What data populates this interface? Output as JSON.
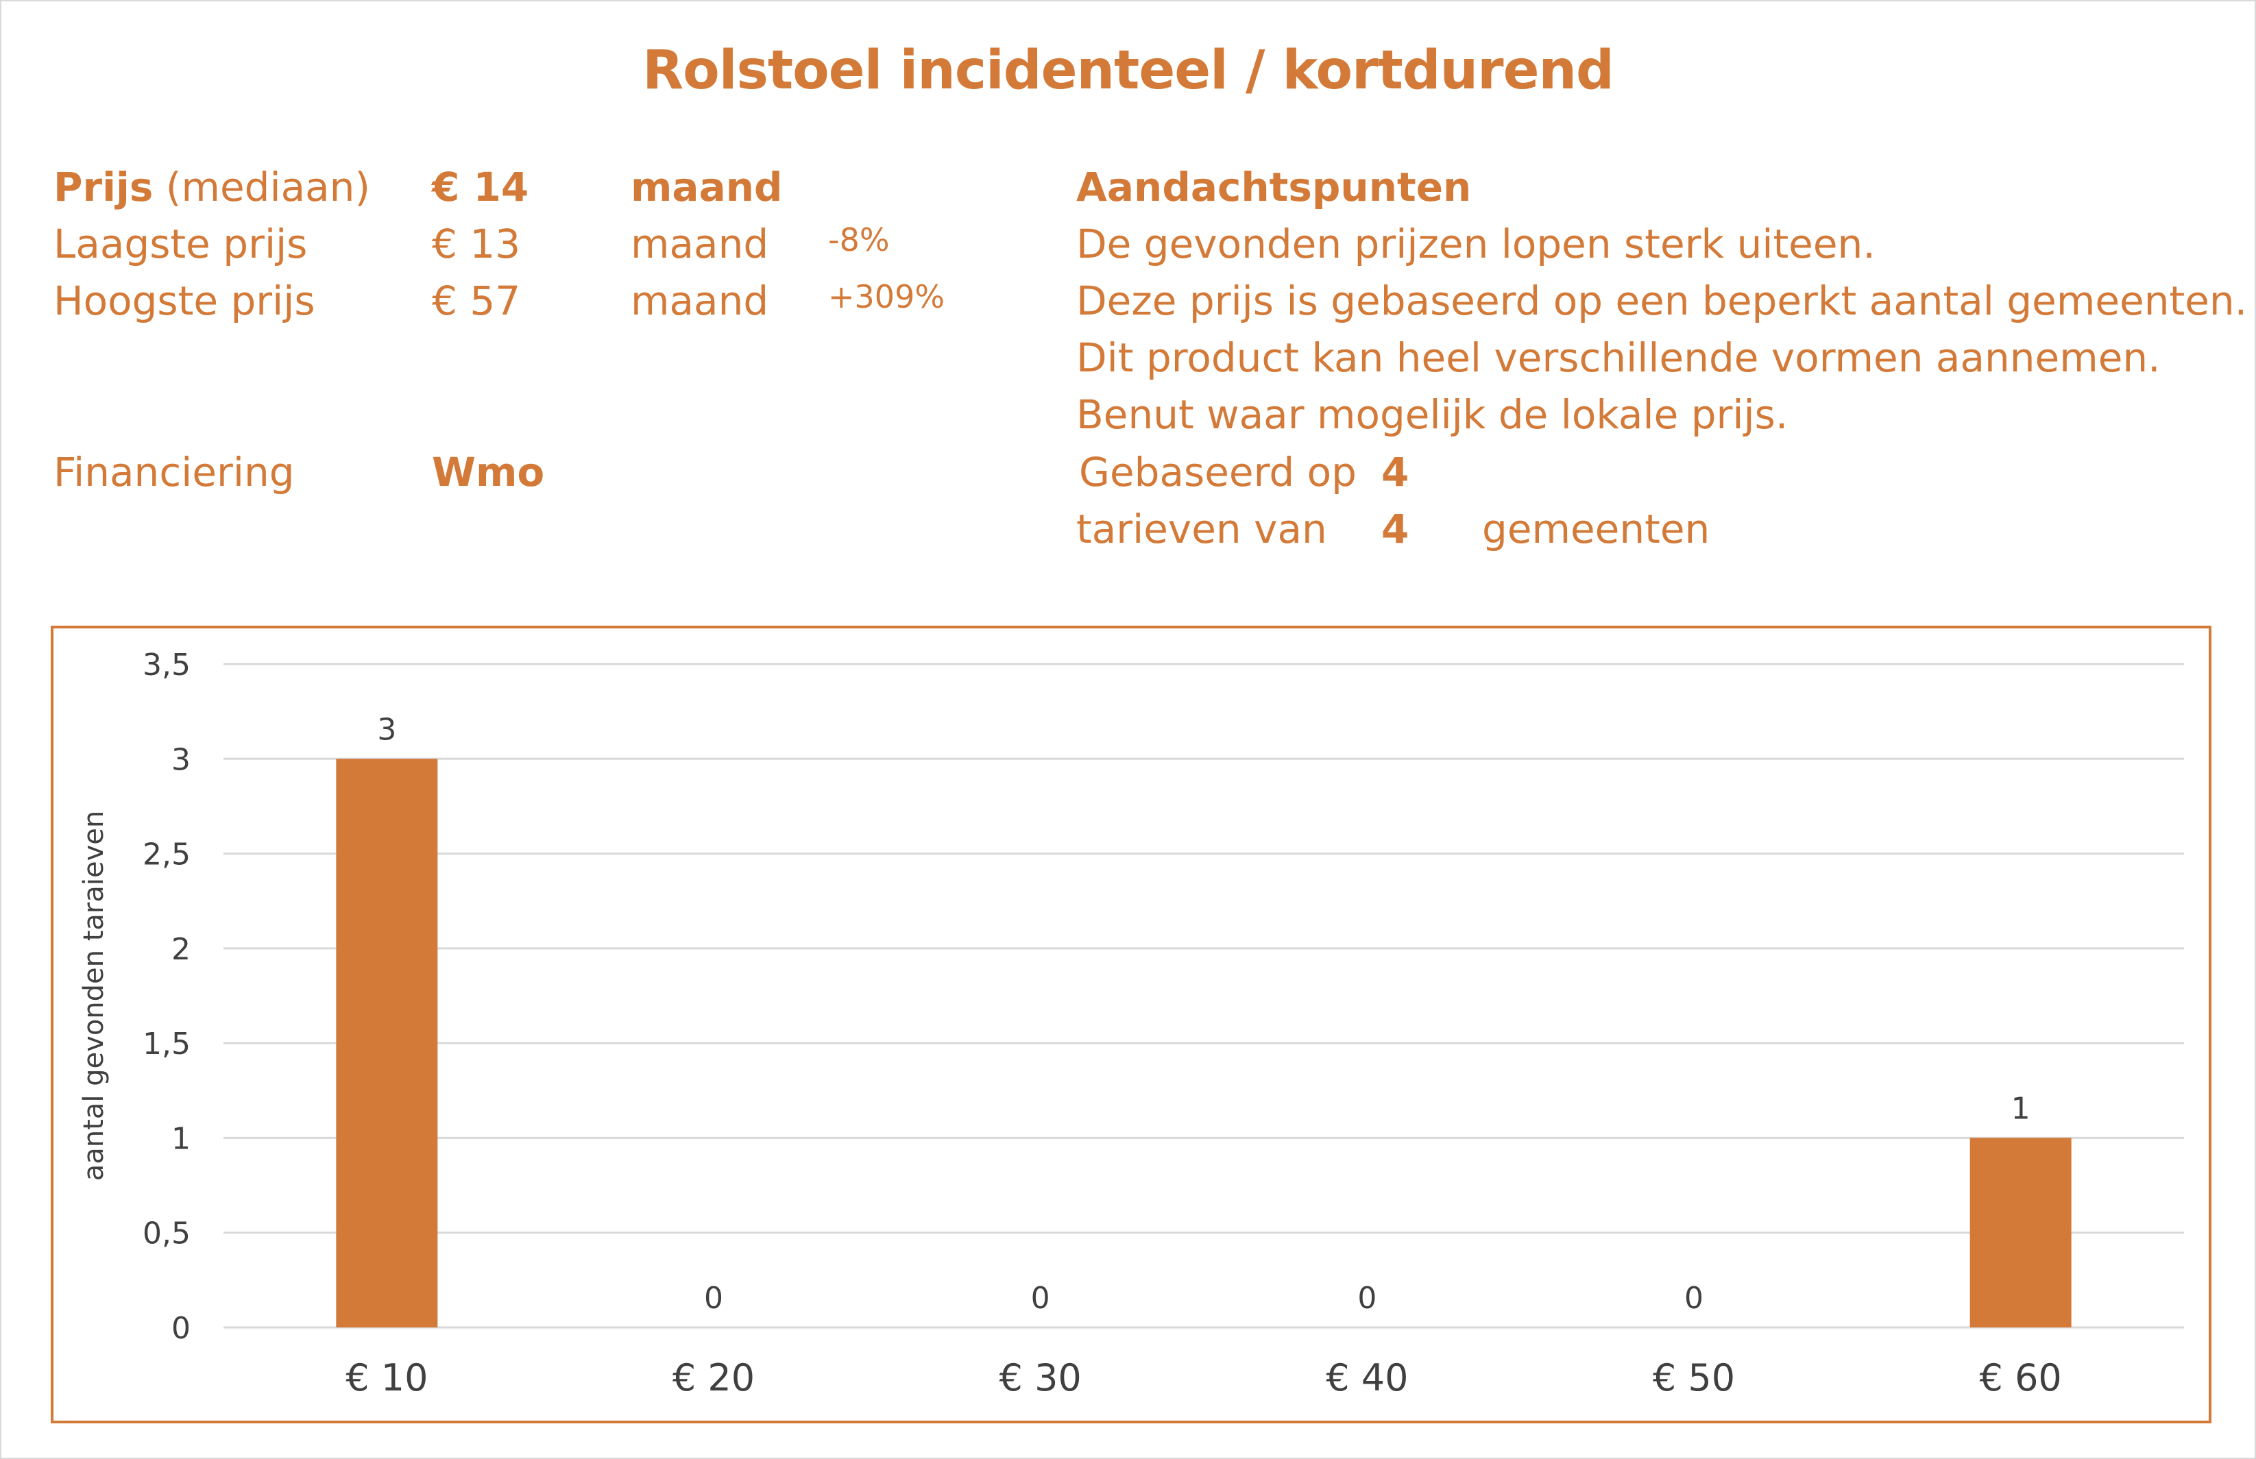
{
  "title": "Rolstoel incidenteel / kortdurend",
  "summary": {
    "price_label_bold": "Prijs",
    "price_label_rest": " (mediaan)",
    "price_value": "€ 14",
    "price_unit": "maand",
    "low_label": "Laagste prijs",
    "low_value": "€ 13",
    "low_unit": "maand",
    "low_pct": "-8%",
    "high_label": "Hoogste prijs",
    "high_value": "€ 57",
    "high_unit": "maand",
    "high_pct": "+309%",
    "financing_label": "Financiering",
    "financing_value": "Wmo"
  },
  "notes": {
    "heading": "Aandachtspunten",
    "lines": [
      "De gevonden prijzen lopen sterk uiteen.",
      "Deze prijs is gebaseerd op een beperkt aantal gemeenten.",
      "Dit product kan heel verschillende vormen aannemen.",
      "Benut waar mogelijk de lokale prijs."
    ],
    "based_on_label": "Gebaseerd op",
    "based_on_value": "4",
    "tariffs_label": "tarieven van",
    "tariffs_value": "4",
    "municipalities_label": "gemeenten"
  },
  "colors": {
    "accent": "#d37a38",
    "bar": "#d37a38",
    "grid": "#d9d9d9",
    "axis_text": "#404040"
  },
  "chart_data": {
    "type": "bar",
    "categories": [
      "€ 10",
      "€ 20",
      "€ 30",
      "€ 40",
      "€ 50",
      "€ 60"
    ],
    "values": [
      3,
      0,
      0,
      0,
      0,
      1
    ],
    "data_labels": [
      "3",
      "0",
      "0",
      "0",
      "0",
      "1"
    ],
    "ylabel": "aantal gevonden taraieven",
    "xlabel": "",
    "ylim": [
      0,
      3.5
    ],
    "yticks": [
      0,
      0.5,
      1,
      1.5,
      2,
      2.5,
      3,
      3.5
    ],
    "ytick_labels": [
      "0",
      "0,5",
      "1",
      "1,5",
      "2",
      "2,5",
      "3",
      "3,5"
    ],
    "grid": true,
    "legend": "none"
  }
}
